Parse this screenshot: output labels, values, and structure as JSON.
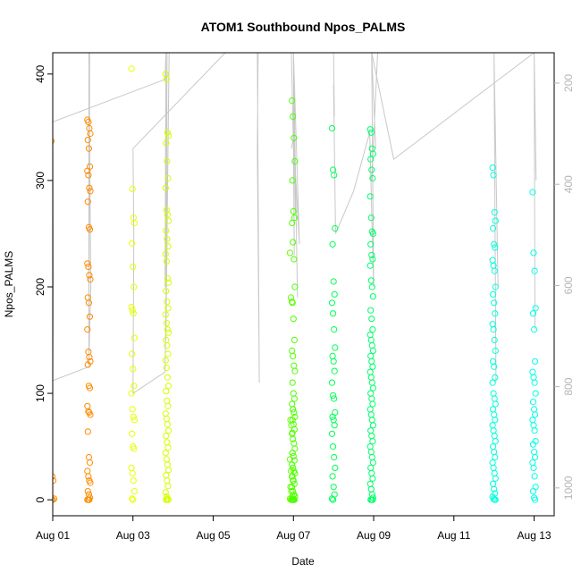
{
  "chart_data": {
    "type": "scatter",
    "title": "ATOM1 Southbound Npos_PALMS",
    "xlabel": "Date",
    "ylabel": "Npos_PALMS",
    "x_unit": "days since Aug 01",
    "xlim": [
      0,
      12.5
    ],
    "ylim": [
      -15,
      420
    ],
    "x_ticks": [
      {
        "value": 0,
        "label": "Aug 01"
      },
      {
        "value": 2,
        "label": "Aug 03"
      },
      {
        "value": 4,
        "label": "Aug 05"
      },
      {
        "value": 6,
        "label": "Aug 07"
      },
      {
        "value": 8,
        "label": "Aug 09"
      },
      {
        "value": 10,
        "label": "Aug 11"
      },
      {
        "value": 12,
        "label": "Aug 13"
      }
    ],
    "y_ticks": [
      0,
      100,
      200,
      300,
      400
    ],
    "y2_label": "",
    "y2lim": [
      1055,
      140
    ],
    "y2_ticks": [
      200,
      400,
      600,
      800,
      1000
    ],
    "y2_color": "#b5b5b5",
    "point_colors_by_day": [
      "#ff8c00",
      "#ffa500",
      "#e6ff00",
      "#d4ff00",
      "#a0ff00",
      "#66ff00",
      "#4dff00",
      "#33ff00",
      "#00ff55",
      "#00ff6a",
      "#00ffa0",
      "#00ffc8",
      "#00ffdc",
      "#00ffe6"
    ],
    "point_groups": [
      {
        "x": 0.0,
        "color": "#ff8c00",
        "values": [
          337,
          22,
          18,
          1,
          0,
          0
        ]
      },
      {
        "x": 0.9,
        "color": "#ff8c00",
        "values": [
          357,
          355,
          349,
          344,
          338,
          330,
          313,
          309,
          305,
          293,
          290,
          280,
          256,
          254,
          222,
          219,
          211,
          207,
          190,
          185,
          172,
          160,
          139,
          134,
          130,
          127,
          107,
          105,
          88,
          83,
          82,
          80,
          64,
          40,
          35,
          27,
          22,
          18,
          16,
          8,
          5,
          2,
          0,
          0,
          0
        ]
      },
      {
        "x": 2.0,
        "color": "#e6ff00",
        "values": [
          405,
          292,
          265,
          260,
          241,
          219,
          200,
          181,
          178,
          175,
          152,
          137,
          123,
          107,
          100,
          85,
          78,
          75,
          62,
          50,
          48,
          30,
          25,
          18,
          8,
          1,
          0
        ]
      },
      {
        "x": 2.85,
        "color": "#d4ff00",
        "values": [
          400,
          395,
          345,
          342,
          335,
          318,
          302,
          293,
          272,
          268,
          262,
          253,
          245,
          238,
          231,
          224,
          208,
          204,
          196,
          186,
          180,
          174,
          166,
          160,
          157,
          150,
          145,
          137,
          131,
          124,
          115,
          107,
          102,
          93,
          88,
          81,
          76,
          71,
          65,
          60,
          54,
          49,
          44,
          38,
          33,
          28,
          23,
          18,
          13,
          7,
          3,
          1,
          0,
          0,
          0
        ]
      },
      {
        "x": 5.95,
        "color": "#66ff00",
        "values": [
          232,
          190,
          186,
          85,
          75,
          70,
          63,
          38,
          27,
          22,
          18,
          12,
          8,
          3,
          1,
          0,
          0,
          0
        ]
      },
      {
        "x": 6.0,
        "color": "#4dff00",
        "values": [
          375,
          360,
          340,
          318,
          300,
          271,
          265,
          260,
          242,
          226,
          200,
          185,
          170,
          150,
          140,
          135,
          126,
          121,
          110,
          100,
          95,
          90,
          85,
          82,
          78,
          75,
          71,
          66,
          62,
          57,
          53,
          48,
          44,
          41,
          37,
          33,
          30,
          27,
          25,
          22,
          18,
          15,
          12,
          8,
          5,
          3,
          1,
          0,
          0,
          0,
          0,
          0
        ]
      },
      {
        "x": 7.0,
        "color": "#00ff55",
        "values": [
          349,
          310,
          305,
          255,
          240,
          205,
          193,
          185,
          175,
          160,
          143,
          135,
          130,
          121,
          110,
          98,
          95,
          82,
          78,
          75,
          70,
          62,
          50,
          40,
          30,
          22,
          12,
          5,
          1,
          0
        ]
      },
      {
        "x": 7.95,
        "color": "#00ff6a",
        "values": [
          348,
          345,
          330,
          325,
          320,
          310,
          302,
          285,
          265,
          252,
          250,
          240,
          230,
          226,
          220,
          206,
          200,
          191,
          178,
          170,
          160,
          155,
          150,
          145,
          140,
          135,
          130,
          125,
          120,
          115,
          110,
          105,
          100,
          95,
          90,
          85,
          80,
          75,
          70,
          65,
          60,
          55,
          50,
          45,
          40,
          35,
          30,
          25,
          20,
          15,
          10,
          5,
          2,
          0,
          0,
          0
        ]
      },
      {
        "x": 11.0,
        "color": "#00ffdc",
        "values": [
          312,
          305,
          270,
          262,
          255,
          240,
          237,
          225,
          220,
          215,
          200,
          193,
          185,
          175,
          165,
          160,
          150,
          140,
          130,
          125,
          115,
          110,
          100,
          95,
          90,
          85,
          80,
          75,
          70,
          65,
          60,
          55,
          50,
          45,
          40,
          35,
          30,
          25,
          20,
          15,
          10,
          6,
          3,
          1,
          0,
          0
        ]
      },
      {
        "x": 12.0,
        "color": "#00ffe6",
        "values": [
          289,
          232,
          215,
          180,
          175,
          160,
          130,
          120,
          115,
          110,
          100,
          92,
          85,
          80,
          75,
          70,
          65,
          55,
          52,
          45,
          40,
          35,
          30,
          22,
          12,
          8,
          2,
          0
        ]
      }
    ],
    "trace_color": "#c8c8c8",
    "trace_series": [
      {
        "x": [
          0.0,
          0.0,
          0.02,
          0.0,
          0.0,
          0.9,
          0.9,
          0.92,
          0.9,
          0.95,
          0.9
        ],
        "y": [
          0,
          110,
          205,
          355,
          112,
          125,
          395,
          420,
          130,
          200,
          420
        ]
      },
      {
        "x": [
          0.0,
          2.8,
          2.82,
          2.8,
          2.85,
          2.82,
          2.9,
          2.8,
          2.0,
          2.02,
          2.0
        ],
        "y": [
          355,
          395,
          420,
          200,
          420,
          150,
          420,
          120,
          100,
          245,
          330
        ]
      },
      {
        "x": [
          2.0,
          4.3,
          5.1,
          5.15,
          5.1,
          5.12,
          5.1
        ],
        "y": [
          330,
          420,
          420,
          110,
          330,
          420,
          420
        ]
      },
      {
        "x": [
          5.95,
          6.0,
          6.02,
          6.0,
          6.05,
          6.0,
          6.1,
          6.0,
          6.15,
          6.0,
          5.95
        ],
        "y": [
          420,
          330,
          230,
          420,
          270,
          420,
          190,
          420,
          240,
          340,
          330
        ]
      },
      {
        "x": [
          7.0,
          7.02,
          7.0,
          7.05,
          7.5,
          7.9,
          8.0,
          7.95,
          8.05,
          7.95,
          8.1,
          7.95
        ],
        "y": [
          420,
          360,
          390,
          250,
          290,
          345,
          200,
          420,
          330,
          420,
          420,
          300
        ]
      },
      {
        "x": [
          7.95,
          8.5,
          12.0,
          11.0,
          11.05,
          11.0,
          11.1,
          11.0,
          11.2,
          12.0,
          12.02,
          12.0,
          12.05
        ],
        "y": [
          420,
          320,
          420,
          420,
          110,
          420,
          200,
          420,
          420,
          420,
          160,
          420,
          300
        ]
      }
    ]
  }
}
